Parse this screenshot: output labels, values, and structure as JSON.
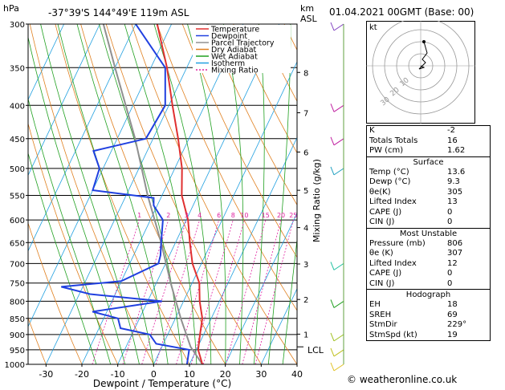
{
  "header": {
    "location": "-37°39'S  144°49'E  119m  ASL",
    "datetime": "01.04.2021  00GMT  (Base: 00)",
    "hpa_label": "hPa",
    "km_label": "km",
    "asl_label": "ASL"
  },
  "chart_data": {
    "type": "line",
    "xlabel": "Dewpoint / Temperature (°C)",
    "ylabel_right": "Mixing Ratio (g/kg)",
    "x_ticks": [
      -30,
      -20,
      -10,
      0,
      10,
      20,
      30,
      40
    ],
    "pressure_levels": [
      300,
      350,
      400,
      450,
      500,
      550,
      600,
      650,
      700,
      750,
      800,
      850,
      900,
      950,
      1000
    ],
    "km_ticks": [
      {
        "km": 1,
        "label": "1"
      },
      {
        "km": 2,
        "label": "2"
      },
      {
        "km": 3,
        "label": "3"
      },
      {
        "km": 4,
        "label": "4"
      },
      {
        "km": 5,
        "label": "5"
      },
      {
        "km": 6,
        "label": "6"
      },
      {
        "km": 7,
        "label": "7"
      },
      {
        "km": 8,
        "label": "8"
      }
    ],
    "lcl_label": "LCL",
    "lcl_pressure": 940,
    "mixing_ratio_labels": [
      "1",
      "2",
      "3",
      "4",
      "6",
      "8",
      "10",
      "15",
      "20",
      "25"
    ],
    "legend": [
      {
        "name": "Temperature",
        "color": "#e03030"
      },
      {
        "name": "Dewpoint",
        "color": "#2040e0"
      },
      {
        "name": "Parcel Trajectory",
        "color": "#909090"
      },
      {
        "name": "Dry Adiabat",
        "color": "#e08020"
      },
      {
        "name": "Wet Adiabat",
        "color": "#20a020"
      },
      {
        "name": "Isotherm",
        "color": "#20a0e0"
      },
      {
        "name": "Mixing Ratio",
        "color": "#e020a0"
      }
    ],
    "temperature": [
      [
        1000,
        13.6
      ],
      [
        950,
        10.5
      ],
      [
        900,
        9.0
      ],
      [
        850,
        7.5
      ],
      [
        800,
        4.5
      ],
      [
        750,
        2.0
      ],
      [
        700,
        -2.5
      ],
      [
        650,
        -6.0
      ],
      [
        600,
        -9.5
      ],
      [
        550,
        -14.5
      ],
      [
        500,
        -18.0
      ],
      [
        450,
        -23.0
      ],
      [
        400,
        -29.0
      ],
      [
        350,
        -35.5
      ],
      [
        300,
        -44.0
      ]
    ],
    "dewpoint": [
      [
        1000,
        9.3
      ],
      [
        950,
        8.0
      ],
      [
        930,
        -2.0
      ],
      [
        900,
        -5.0
      ],
      [
        880,
        -14.0
      ],
      [
        850,
        -16.0
      ],
      [
        830,
        -24.0
      ],
      [
        800,
        -6.0
      ],
      [
        780,
        -27.0
      ],
      [
        760,
        -36.0
      ],
      [
        745,
        -20.0
      ],
      [
        700,
        -12.0
      ],
      [
        680,
        -12.5
      ],
      [
        650,
        -14.0
      ],
      [
        600,
        -16.5
      ],
      [
        570,
        -21.0
      ],
      [
        555,
        -22.0
      ],
      [
        540,
        -40.0
      ],
      [
        500,
        -41.0
      ],
      [
        470,
        -45.0
      ],
      [
        450,
        -32.0
      ],
      [
        400,
        -31.0
      ],
      [
        350,
        -36.0
      ],
      [
        300,
        -50.0
      ]
    ],
    "parcel": [
      [
        1000,
        13.6
      ],
      [
        940,
        8.0
      ],
      [
        850,
        1.5
      ],
      [
        750,
        -6.0
      ],
      [
        650,
        -14.0
      ],
      [
        550,
        -24.0
      ],
      [
        450,
        -35.0
      ],
      [
        350,
        -50.0
      ],
      [
        300,
        -59.0
      ]
    ]
  },
  "hodograph": {
    "label": "kt",
    "ring_labels": [
      "10",
      "20",
      "30"
    ]
  },
  "indices": {
    "rows": [
      {
        "label": "K",
        "value": "-2"
      },
      {
        "label": "Totals Totals",
        "value": "16"
      },
      {
        "label": "PW (cm)",
        "value": "1.62"
      }
    ],
    "surface": {
      "title": "Surface",
      "rows": [
        {
          "label": "Temp (°C)",
          "value": "13.6"
        },
        {
          "label": "Dewp (°C)",
          "value": "9.3"
        },
        {
          "label": "θe(K)",
          "value": "305"
        },
        {
          "label": "Lifted Index",
          "value": "13"
        },
        {
          "label": "CAPE (J)",
          "value": "0"
        },
        {
          "label": "CIN (J)",
          "value": "0"
        }
      ]
    },
    "unstable": {
      "title": "Most Unstable",
      "rows": [
        {
          "label": "Pressure (mb)",
          "value": "806"
        },
        {
          "label": "θe (K)",
          "value": "307"
        },
        {
          "label": "Lifted Index",
          "value": "12"
        },
        {
          "label": "CAPE (J)",
          "value": "0"
        },
        {
          "label": "CIN (J)",
          "value": "0"
        }
      ]
    },
    "hodo": {
      "title": "Hodograph",
      "rows": [
        {
          "label": "EH",
          "value": "18"
        },
        {
          "label": "SREH",
          "value": "69"
        },
        {
          "label": "StmDir",
          "value": "229°"
        },
        {
          "label": "StmSpd (kt)",
          "value": "19"
        }
      ]
    }
  },
  "credit": "© weatheronline.co.uk"
}
